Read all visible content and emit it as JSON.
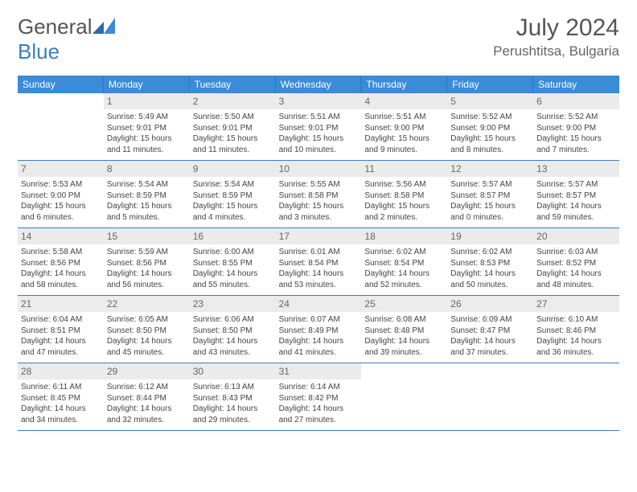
{
  "brand": {
    "word1": "General",
    "word2": "Blue"
  },
  "title": "July 2024",
  "location": "Perushtitsa, Bulgaria",
  "colors": {
    "header_bg": "#3a8bd8",
    "week_border": "#3a7ec1",
    "daynum_bg": "#ebebeb",
    "text": "#444"
  },
  "weekday_labels": [
    "Sunday",
    "Monday",
    "Tuesday",
    "Wednesday",
    "Thursday",
    "Friday",
    "Saturday"
  ],
  "start_offset": 1,
  "days": [
    {
      "n": 1,
      "sunrise": "5:49 AM",
      "sunset": "9:01 PM",
      "day_h": 15,
      "day_m": 11
    },
    {
      "n": 2,
      "sunrise": "5:50 AM",
      "sunset": "9:01 PM",
      "day_h": 15,
      "day_m": 11
    },
    {
      "n": 3,
      "sunrise": "5:51 AM",
      "sunset": "9:01 PM",
      "day_h": 15,
      "day_m": 10
    },
    {
      "n": 4,
      "sunrise": "5:51 AM",
      "sunset": "9:00 PM",
      "day_h": 15,
      "day_m": 9
    },
    {
      "n": 5,
      "sunrise": "5:52 AM",
      "sunset": "9:00 PM",
      "day_h": 15,
      "day_m": 8
    },
    {
      "n": 6,
      "sunrise": "5:52 AM",
      "sunset": "9:00 PM",
      "day_h": 15,
      "day_m": 7
    },
    {
      "n": 7,
      "sunrise": "5:53 AM",
      "sunset": "9:00 PM",
      "day_h": 15,
      "day_m": 6
    },
    {
      "n": 8,
      "sunrise": "5:54 AM",
      "sunset": "8:59 PM",
      "day_h": 15,
      "day_m": 5
    },
    {
      "n": 9,
      "sunrise": "5:54 AM",
      "sunset": "8:59 PM",
      "day_h": 15,
      "day_m": 4
    },
    {
      "n": 10,
      "sunrise": "5:55 AM",
      "sunset": "8:58 PM",
      "day_h": 15,
      "day_m": 3
    },
    {
      "n": 11,
      "sunrise": "5:56 AM",
      "sunset": "8:58 PM",
      "day_h": 15,
      "day_m": 2
    },
    {
      "n": 12,
      "sunrise": "5:57 AM",
      "sunset": "8:57 PM",
      "day_h": 15,
      "day_m": 0
    },
    {
      "n": 13,
      "sunrise": "5:57 AM",
      "sunset": "8:57 PM",
      "day_h": 14,
      "day_m": 59
    },
    {
      "n": 14,
      "sunrise": "5:58 AM",
      "sunset": "8:56 PM",
      "day_h": 14,
      "day_m": 58
    },
    {
      "n": 15,
      "sunrise": "5:59 AM",
      "sunset": "8:56 PM",
      "day_h": 14,
      "day_m": 56
    },
    {
      "n": 16,
      "sunrise": "6:00 AM",
      "sunset": "8:55 PM",
      "day_h": 14,
      "day_m": 55
    },
    {
      "n": 17,
      "sunrise": "6:01 AM",
      "sunset": "8:54 PM",
      "day_h": 14,
      "day_m": 53
    },
    {
      "n": 18,
      "sunrise": "6:02 AM",
      "sunset": "8:54 PM",
      "day_h": 14,
      "day_m": 52
    },
    {
      "n": 19,
      "sunrise": "6:02 AM",
      "sunset": "8:53 PM",
      "day_h": 14,
      "day_m": 50
    },
    {
      "n": 20,
      "sunrise": "6:03 AM",
      "sunset": "8:52 PM",
      "day_h": 14,
      "day_m": 48
    },
    {
      "n": 21,
      "sunrise": "6:04 AM",
      "sunset": "8:51 PM",
      "day_h": 14,
      "day_m": 47
    },
    {
      "n": 22,
      "sunrise": "6:05 AM",
      "sunset": "8:50 PM",
      "day_h": 14,
      "day_m": 45
    },
    {
      "n": 23,
      "sunrise": "6:06 AM",
      "sunset": "8:50 PM",
      "day_h": 14,
      "day_m": 43
    },
    {
      "n": 24,
      "sunrise": "6:07 AM",
      "sunset": "8:49 PM",
      "day_h": 14,
      "day_m": 41
    },
    {
      "n": 25,
      "sunrise": "6:08 AM",
      "sunset": "8:48 PM",
      "day_h": 14,
      "day_m": 39
    },
    {
      "n": 26,
      "sunrise": "6:09 AM",
      "sunset": "8:47 PM",
      "day_h": 14,
      "day_m": 37
    },
    {
      "n": 27,
      "sunrise": "6:10 AM",
      "sunset": "8:46 PM",
      "day_h": 14,
      "day_m": 36
    },
    {
      "n": 28,
      "sunrise": "6:11 AM",
      "sunset": "8:45 PM",
      "day_h": 14,
      "day_m": 34
    },
    {
      "n": 29,
      "sunrise": "6:12 AM",
      "sunset": "8:44 PM",
      "day_h": 14,
      "day_m": 32
    },
    {
      "n": 30,
      "sunrise": "6:13 AM",
      "sunset": "8:43 PM",
      "day_h": 14,
      "day_m": 29
    },
    {
      "n": 31,
      "sunrise": "6:14 AM",
      "sunset": "8:42 PM",
      "day_h": 14,
      "day_m": 27
    }
  ]
}
